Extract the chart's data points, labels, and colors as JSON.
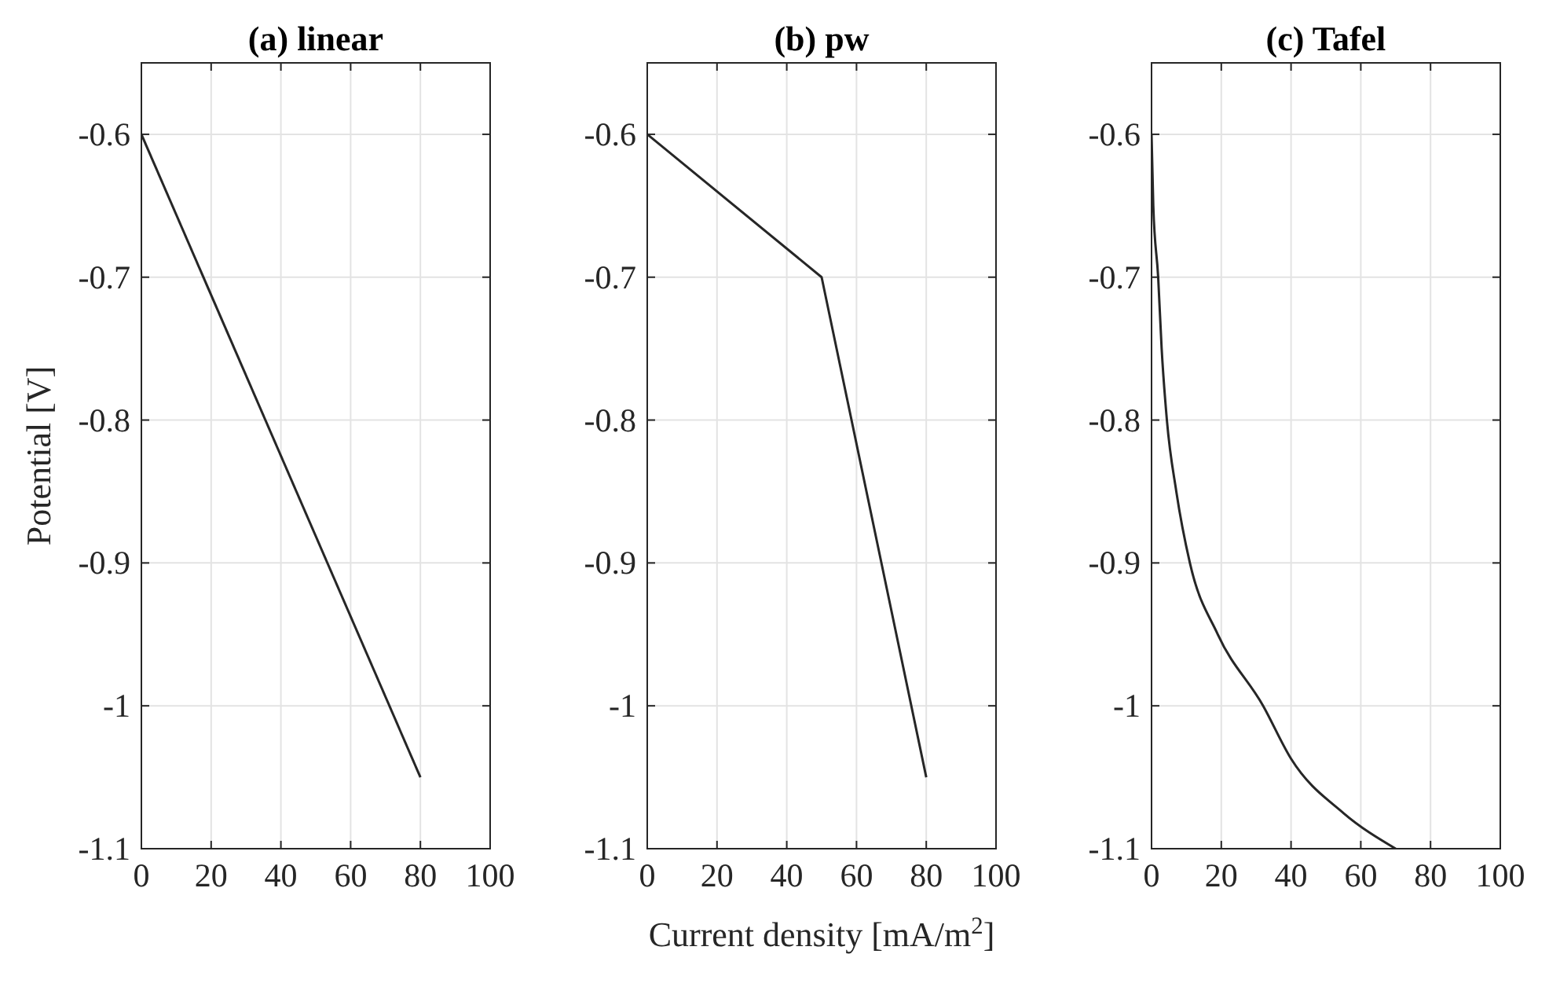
{
  "chart_data": [
    {
      "type": "line",
      "title": "(a) linear",
      "ylabel": "Potential [V]",
      "xlim": [
        0,
        100
      ],
      "ylim": [
        -1.1,
        -0.55
      ],
      "xticks": [
        0,
        20,
        40,
        60,
        80,
        100
      ],
      "yticks": [
        -1.1,
        -1,
        -0.9,
        -0.8,
        -0.7,
        -0.6
      ],
      "grid": true,
      "series": [
        {
          "color": "#262626",
          "x": [
            0,
            80
          ],
          "values": [
            -0.6,
            -1.05
          ]
        }
      ]
    },
    {
      "type": "line",
      "title": "(b) pw",
      "xlabel": "Current density [mA/m$^{2}$]",
      "xlim": [
        0,
        100
      ],
      "ylim": [
        -1.1,
        -0.55
      ],
      "xticks": [
        0,
        20,
        40,
        60,
        80,
        100
      ],
      "yticks": [
        -1.1,
        -1,
        -0.9,
        -0.8,
        -0.7,
        -0.6
      ],
      "grid": true,
      "series": [
        {
          "color": "#262626",
          "x": [
            0,
            50,
            80
          ],
          "values": [
            -0.6,
            -0.7,
            -1.05
          ]
        }
      ]
    },
    {
      "type": "line",
      "title": "(c) Tafel",
      "xlim": [
        0,
        100
      ],
      "ylim": [
        -1.1,
        -0.55
      ],
      "xticks": [
        0,
        20,
        40,
        60,
        80,
        100
      ],
      "yticks": [
        -1.1,
        -1,
        -0.9,
        -0.8,
        -0.7,
        -0.6
      ],
      "grid": true,
      "series": [
        {
          "color": "#262626",
          "x": [
            0,
            0.5,
            1.9,
            2.9,
            4.4,
            7.1,
            11,
            19,
            32,
            40,
            55,
            70
          ],
          "values": [
            -0.6,
            -0.65,
            -0.7,
            -0.75,
            -0.8,
            -0.85,
            -0.9,
            -0.95,
            -1.0,
            -1.037,
            -1.075,
            -1.1
          ]
        }
      ]
    }
  ]
}
